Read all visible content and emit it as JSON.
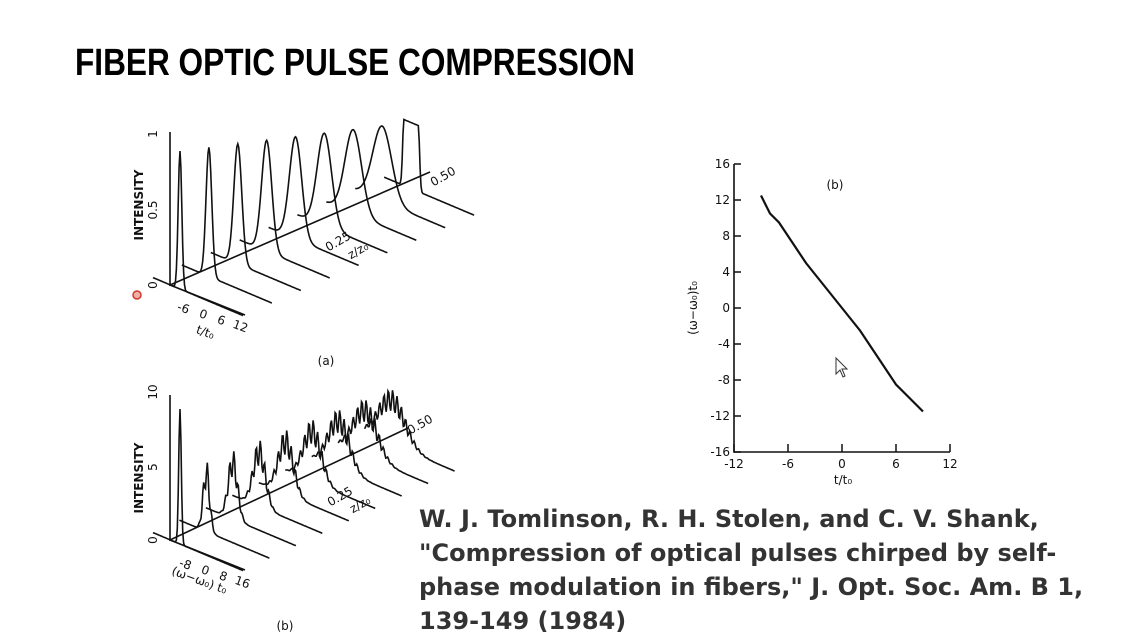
{
  "header": {
    "title": "FIBER OPTIC PULSE COMPRESSION"
  },
  "figure_a": {
    "label": "(a)",
    "y_label": "INTENSITY",
    "y_ticks": [
      "0",
      "0.5",
      "1"
    ],
    "x_label": "t/t₀",
    "x_ticks": [
      "-6",
      "0",
      "6",
      "12"
    ],
    "z_label": "z/z₀",
    "z_ticks": [
      "0.25",
      "0.50"
    ]
  },
  "figure_b": {
    "label": "(b)",
    "y_label": "INTENSITY",
    "y_ticks": [
      "0",
      "5",
      "10"
    ],
    "x_label": "(ω−ω₀) t₀",
    "x_ticks": [
      "-8",
      "0",
      "8",
      "16"
    ],
    "z_label": "z/z₀",
    "z_ticks": [
      "0.25",
      "0.50"
    ]
  },
  "chart_data": {
    "type": "line",
    "title": "(b)",
    "x_label": "t/t₀",
    "y_label": "(ω−ω₀)t₀",
    "x": [
      -9,
      -8,
      -7,
      -6,
      -5,
      -4,
      -2,
      0,
      2,
      3,
      4,
      5,
      6,
      7,
      8,
      9
    ],
    "values": [
      12.5,
      10.5,
      9.5,
      8,
      6.5,
      5,
      2.5,
      0,
      -2.5,
      -4,
      -5.5,
      -7,
      -8.5,
      -9.5,
      -10.5,
      -11.5
    ],
    "color": "#111111",
    "xlim": [
      -12,
      12
    ],
    "ylim": [
      -16,
      16
    ],
    "xticks": [
      -12,
      -6,
      0,
      6,
      12
    ],
    "yticks": [
      -16,
      -12,
      -8,
      -4,
      0,
      4,
      8,
      12,
      16
    ]
  },
  "citation": {
    "lines": [
      "W. J. Tomlinson, R. H. Stolen, and C. V. Shank,",
      "\"Compression of optical pulses chirped by self-",
      "phase modulation in fibers,\" J. Opt. Soc. Am. B  1,",
      "139-149 (1984)"
    ]
  }
}
